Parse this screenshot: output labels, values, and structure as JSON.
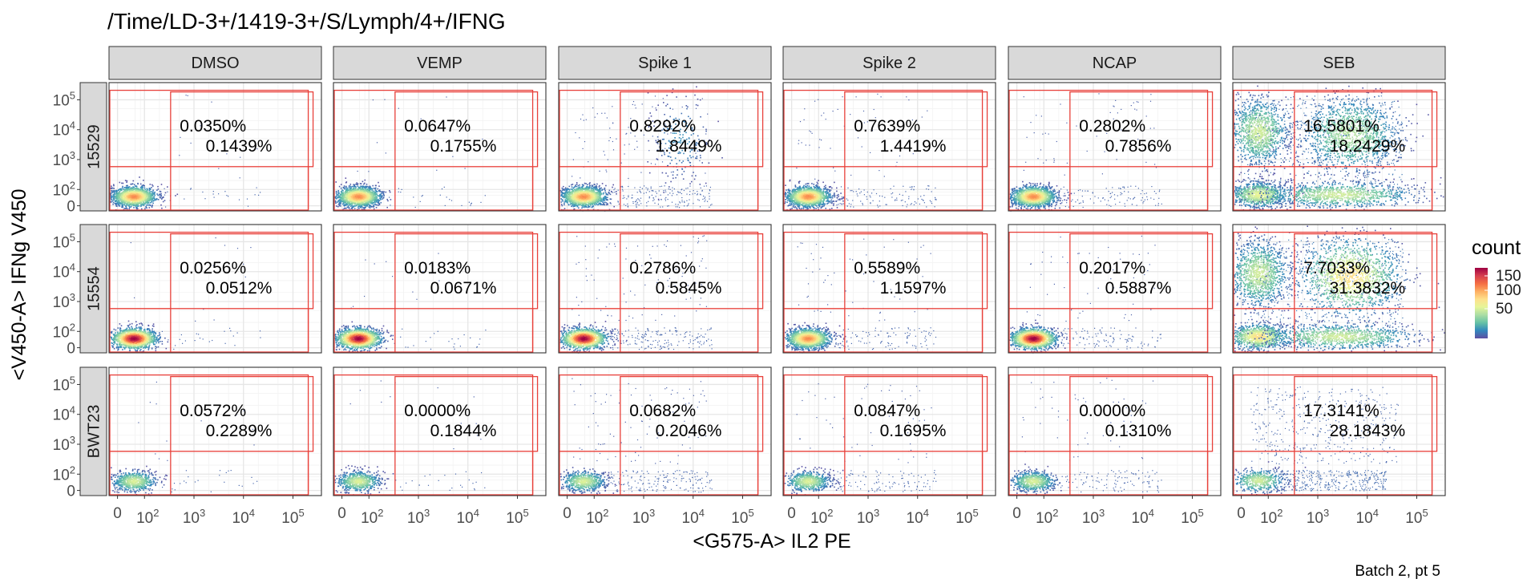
{
  "chart_data": {
    "type": "scatter",
    "subtype": "faceted 2D density (flow cytometry)",
    "title": "/Time/LD-3+/1419-3+/S/Lymph/4+/IFNG",
    "xlabel": "<G575-A> IL2 PE",
    "ylabel": "<V450-A> IFNg V450",
    "caption": "Batch 2, pt 5",
    "columns": [
      "DMSO",
      "VEMP",
      "Spike 1",
      "Spike 2",
      "NCAP",
      "SEB"
    ],
    "rows": [
      "15529",
      "15554",
      "BWT23"
    ],
    "x_ticks": [
      {
        "base": "0",
        "exp": ""
      },
      {
        "base": "10",
        "exp": "2"
      },
      {
        "base": "10",
        "exp": "3"
      },
      {
        "base": "10",
        "exp": "4"
      },
      {
        "base": "10",
        "exp": "5"
      }
    ],
    "y_ticks": [
      {
        "base": "0",
        "exp": ""
      },
      {
        "base": "10",
        "exp": "2"
      },
      {
        "base": "10",
        "exp": "3"
      },
      {
        "base": "10",
        "exp": "4"
      },
      {
        "base": "10",
        "exp": "5"
      }
    ],
    "gate_color": "#e8403a",
    "legend": {
      "title": "count",
      "labels": [
        "150",
        "100",
        "50"
      ],
      "placement": "right",
      "colors": [
        "#9e0142",
        "#d53e4f",
        "#f46d43",
        "#fdae61",
        "#fee08b",
        "#e6f598",
        "#abdda4",
        "#66c2a5",
        "#3288bd",
        "#5e4fa2"
      ]
    },
    "panels": [
      {
        "row": "15529",
        "col": "DMSO",
        "pct_upper": "0.0350%",
        "pct_lower": "0.1439%"
      },
      {
        "row": "15529",
        "col": "VEMP",
        "pct_upper": "0.0647%",
        "pct_lower": "0.1755%"
      },
      {
        "row": "15529",
        "col": "Spike 1",
        "pct_upper": "0.8292%",
        "pct_lower": "1.8449%"
      },
      {
        "row": "15529",
        "col": "Spike 2",
        "pct_upper": "0.7639%",
        "pct_lower": "1.4419%"
      },
      {
        "row": "15529",
        "col": "NCAP",
        "pct_upper": "0.2802%",
        "pct_lower": "0.7856%"
      },
      {
        "row": "15529",
        "col": "SEB",
        "pct_upper": "16.5801%",
        "pct_lower": "18.2429%"
      },
      {
        "row": "15554",
        "col": "DMSO",
        "pct_upper": "0.0256%",
        "pct_lower": "0.0512%"
      },
      {
        "row": "15554",
        "col": "VEMP",
        "pct_upper": "0.0183%",
        "pct_lower": "0.0671%"
      },
      {
        "row": "15554",
        "col": "Spike 1",
        "pct_upper": "0.2786%",
        "pct_lower": "0.5845%"
      },
      {
        "row": "15554",
        "col": "Spike 2",
        "pct_upper": "0.5589%",
        "pct_lower": "1.1597%"
      },
      {
        "row": "15554",
        "col": "NCAP",
        "pct_upper": "0.2017%",
        "pct_lower": "0.5887%"
      },
      {
        "row": "15554",
        "col": "SEB",
        "pct_upper": "7.7033%",
        "pct_lower": "31.3832%"
      },
      {
        "row": "BWT23",
        "col": "DMSO",
        "pct_upper": "0.0572%",
        "pct_lower": "0.2289%"
      },
      {
        "row": "BWT23",
        "col": "VEMP",
        "pct_upper": "0.0000%",
        "pct_lower": "0.1844%"
      },
      {
        "row": "BWT23",
        "col": "Spike 1",
        "pct_upper": "0.0682%",
        "pct_lower": "0.2046%"
      },
      {
        "row": "BWT23",
        "col": "Spike 2",
        "pct_upper": "0.0847%",
        "pct_lower": "0.1695%"
      },
      {
        "row": "BWT23",
        "col": "NCAP",
        "pct_upper": "0.0000%",
        "pct_lower": "0.1310%"
      },
      {
        "row": "BWT23",
        "col": "SEB",
        "pct_upper": "17.3141%",
        "pct_lower": "28.1843%"
      }
    ]
  }
}
